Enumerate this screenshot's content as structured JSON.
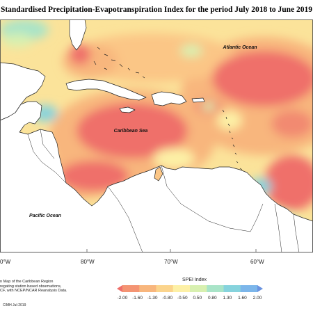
{
  "title": "Standardised Precipitation-Evapotranspiration Index for the period July 2018 to June 2019",
  "labels": {
    "atlantic": "Atlantic Ocean",
    "caribbean": "Caribbean Sea",
    "pacific": "Pacific Ocean"
  },
  "longitudes": [
    "0°W",
    "80°W",
    "70°W",
    "60°W"
  ],
  "footer": {
    "line1": "n Map of the Caribbean Region",
    "line2": "regating station based observations,",
    "line3": "CF, with NCEP/NCAR Reanalysis Data.",
    "date": "CIMH Jul-2019"
  },
  "legend": {
    "title": "SPEI Index",
    "ticks": [
      "-2.00",
      "-1.60",
      "-1.30",
      "-0.80",
      "-0.50",
      "0.50",
      "0.80",
      "1.30",
      "1.60",
      "2.00"
    ],
    "colors": [
      "#ef6f6a",
      "#f49473",
      "#f8b67d",
      "#fbd48c",
      "#fdf0a6",
      "#d8f0b0",
      "#a9e4c8",
      "#86d3dd",
      "#7cb6ea",
      "#6a93e0"
    ]
  }
}
